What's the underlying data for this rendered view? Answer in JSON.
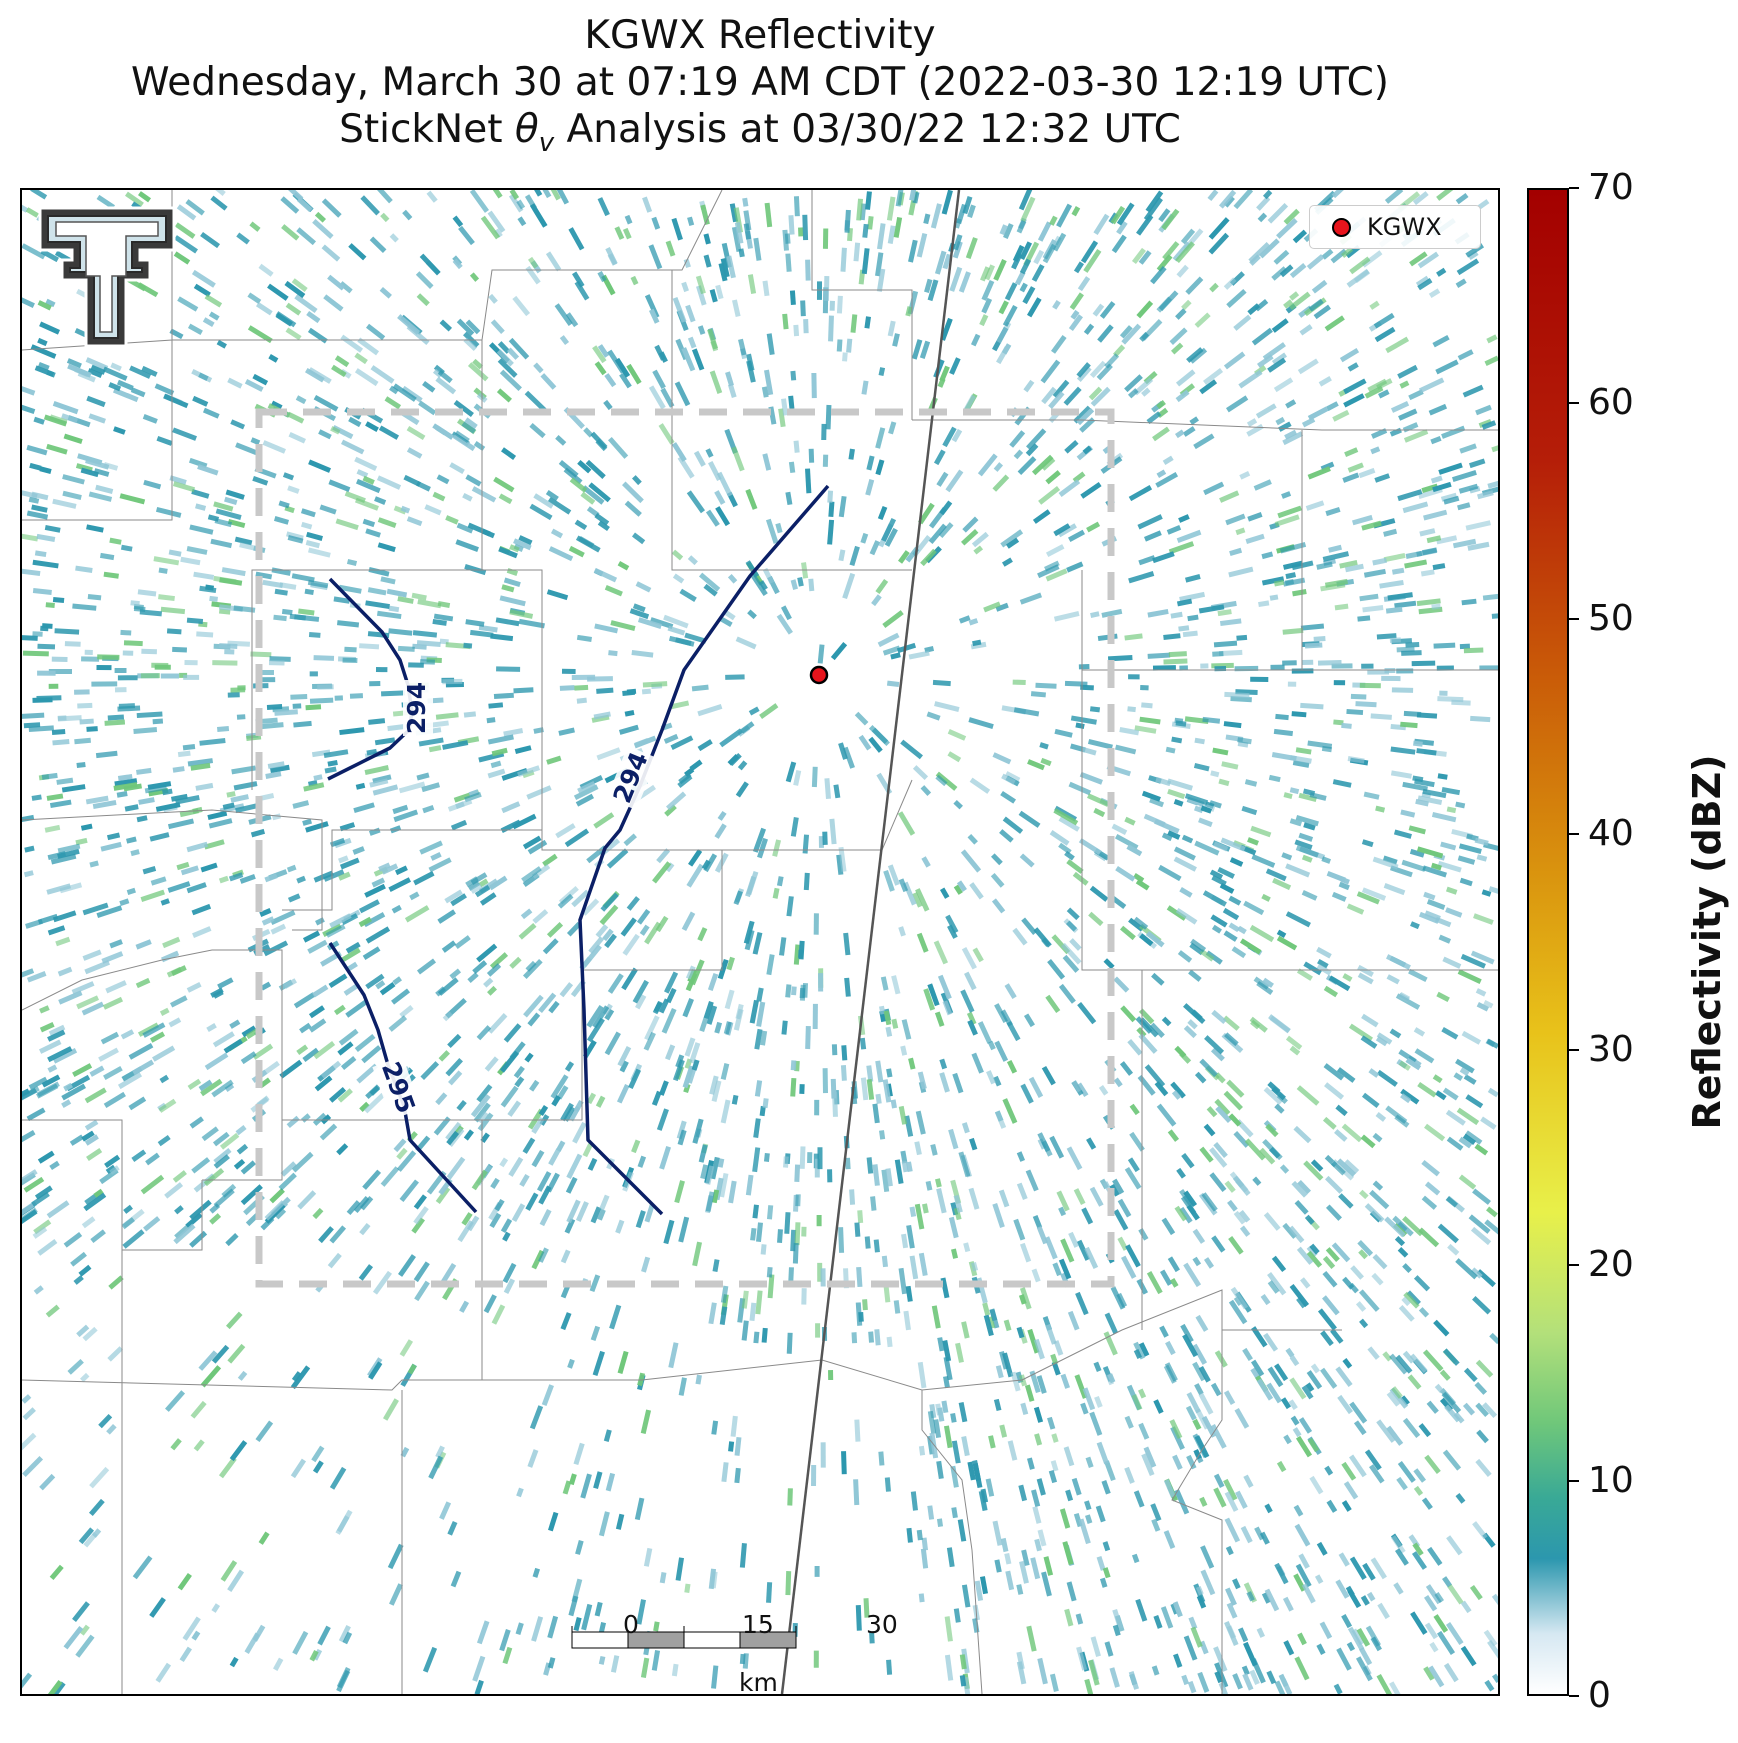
{
  "title": {
    "line1": "KGWX Reflectivity",
    "line2": "Wednesday, March 30 at 07:19 AM CDT (2022-03-30 12:19 UTC)",
    "line3_prefix": "StickNet ",
    "line3_symbol": "θ",
    "line3_sub": "v",
    "line3_suffix": " Analysis at 03/30/22 12:32 UTC"
  },
  "legend": {
    "entries": [
      {
        "label": "KGWX",
        "color": "#e8141c"
      }
    ]
  },
  "colorbar": {
    "label": "Reflectivity (dBZ)",
    "min": 0,
    "max": 70,
    "ticks": [
      "0",
      "10",
      "20",
      "30",
      "40",
      "50",
      "60",
      "70"
    ],
    "colors": [
      "#ffffff",
      "#2c97ae",
      "#6fc77a",
      "#e8f04a",
      "#e8c21a",
      "#d9920e",
      "#c95a08",
      "#a30000"
    ]
  },
  "contours": {
    "color": "#0b1f66",
    "labels": [
      "294",
      "294",
      "295"
    ]
  },
  "scalebar": {
    "ticks": [
      "0",
      "15",
      "30"
    ],
    "unit": "km"
  },
  "logo": {
    "name": "texas-tech-double-t-logo",
    "colors": [
      "#3a3a3a",
      "#cfe3ea",
      "#ffffff"
    ]
  },
  "colors": {
    "echo_primary": "#2c97ae",
    "echo_light": "#8fc6d6",
    "echo_green": "#6fc77a",
    "analysis_box": "#c8c8c8",
    "radar_site": "#e8141c"
  }
}
